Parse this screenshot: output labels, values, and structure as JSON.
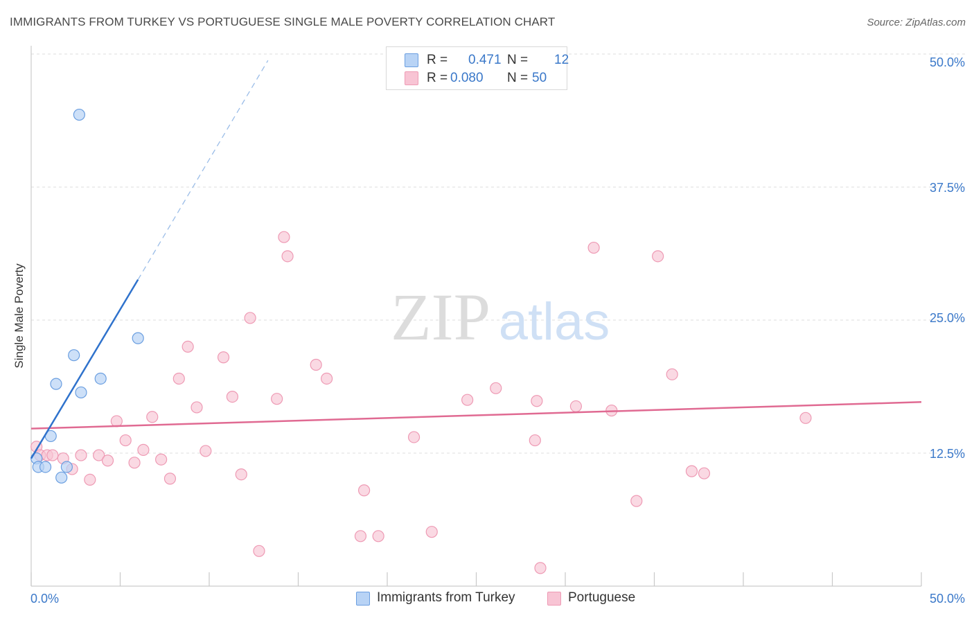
{
  "header": {
    "title": "IMMIGRANTS FROM TURKEY VS PORTUGUESE SINGLE MALE POVERTY CORRELATION CHART",
    "source": "Source: ZipAtlas.com"
  },
  "watermark": {
    "zip": "ZIP",
    "atlas": "atlas"
  },
  "stats": {
    "turkey": {
      "r_label": "R =",
      "r_value": "0.471",
      "n_label": "N =",
      "n_value": "12"
    },
    "portuguese": {
      "r_label": "R =",
      "r_value": "0.080",
      "n_label": "N =",
      "n_value": "50"
    }
  },
  "legend": {
    "turkey": "Immigrants from Turkey",
    "portuguese": "Portuguese"
  },
  "colors": {
    "turkey_fill": "#b8d3f5",
    "turkey_stroke": "#6a9ee0",
    "turkey_line": "#2f72cc",
    "portuguese_fill": "#f8c4d4",
    "portuguese_stroke": "#ee9ab4",
    "portuguese_line": "#e06a92",
    "tick_label": "#3a78c9",
    "grid": "#dddddd"
  },
  "chart_data": {
    "type": "scatter",
    "title": "IMMIGRANTS FROM TURKEY VS PORTUGUESE SINGLE MALE POVERTY CORRELATION CHART",
    "xlabel": "",
    "ylabel": "Single Male Poverty",
    "xlim": [
      0,
      50
    ],
    "ylim": [
      0,
      50
    ],
    "x_tick_labels": [
      "0.0%",
      "50.0%"
    ],
    "y_ticks": [
      12.5,
      25.0,
      37.5,
      50.0
    ],
    "y_tick_labels": [
      "12.5%",
      "25.0%",
      "37.5%",
      "50.0%"
    ],
    "grid": true,
    "legend_position": "bottom-center",
    "series": [
      {
        "name": "Immigrants from Turkey",
        "r": 0.471,
        "n": 12,
        "points": [
          [
            0.3,
            12.0
          ],
          [
            0.4,
            11.2
          ],
          [
            0.8,
            11.2
          ],
          [
            1.1,
            14.1
          ],
          [
            1.4,
            19.0
          ],
          [
            1.7,
            10.2
          ],
          [
            2.0,
            11.2
          ],
          [
            2.4,
            21.7
          ],
          [
            2.8,
            18.2
          ],
          [
            3.9,
            19.5
          ],
          [
            6.0,
            23.3
          ],
          [
            2.7,
            44.3
          ]
        ],
        "trend": {
          "x": [
            0,
            6.0
          ],
          "y": [
            12.0,
            28.8
          ]
        },
        "trend_extension": {
          "x": [
            6.0,
            13.3
          ],
          "y": [
            28.8,
            49.4
          ]
        }
      },
      {
        "name": "Portuguese",
        "r": 0.08,
        "n": 50,
        "points": [
          [
            0.3,
            13.1
          ],
          [
            0.5,
            12.3
          ],
          [
            0.9,
            12.3
          ],
          [
            1.2,
            12.3
          ],
          [
            1.8,
            12.0
          ],
          [
            2.3,
            11.0
          ],
          [
            2.8,
            12.3
          ],
          [
            3.3,
            10.0
          ],
          [
            3.8,
            12.3
          ],
          [
            4.3,
            11.8
          ],
          [
            4.8,
            15.5
          ],
          [
            5.3,
            13.7
          ],
          [
            5.8,
            11.6
          ],
          [
            6.3,
            12.8
          ],
          [
            6.8,
            15.9
          ],
          [
            7.3,
            11.9
          ],
          [
            7.8,
            10.1
          ],
          [
            8.3,
            19.5
          ],
          [
            8.8,
            22.5
          ],
          [
            9.3,
            16.8
          ],
          [
            9.8,
            12.7
          ],
          [
            10.8,
            21.5
          ],
          [
            11.3,
            17.8
          ],
          [
            11.8,
            10.5
          ],
          [
            12.3,
            25.2
          ],
          [
            12.8,
            3.3
          ],
          [
            13.8,
            17.6
          ],
          [
            14.2,
            32.8
          ],
          [
            14.4,
            31.0
          ],
          [
            16.0,
            20.8
          ],
          [
            16.6,
            19.5
          ],
          [
            18.5,
            4.7
          ],
          [
            18.7,
            9.0
          ],
          [
            19.5,
            4.7
          ],
          [
            21.5,
            14.0
          ],
          [
            22.5,
            5.1
          ],
          [
            24.5,
            17.5
          ],
          [
            26.1,
            18.6
          ],
          [
            28.6,
            1.7
          ],
          [
            28.3,
            13.7
          ],
          [
            28.4,
            17.4
          ],
          [
            30.6,
            16.9
          ],
          [
            31.6,
            31.8
          ],
          [
            32.6,
            16.5
          ],
          [
            34.0,
            8.0
          ],
          [
            35.2,
            31.0
          ],
          [
            36.0,
            19.9
          ],
          [
            37.1,
            10.8
          ],
          [
            37.8,
            10.6
          ],
          [
            43.5,
            15.8
          ]
        ],
        "trend": {
          "x": [
            0,
            50
          ],
          "y": [
            14.8,
            17.3
          ]
        }
      }
    ]
  }
}
